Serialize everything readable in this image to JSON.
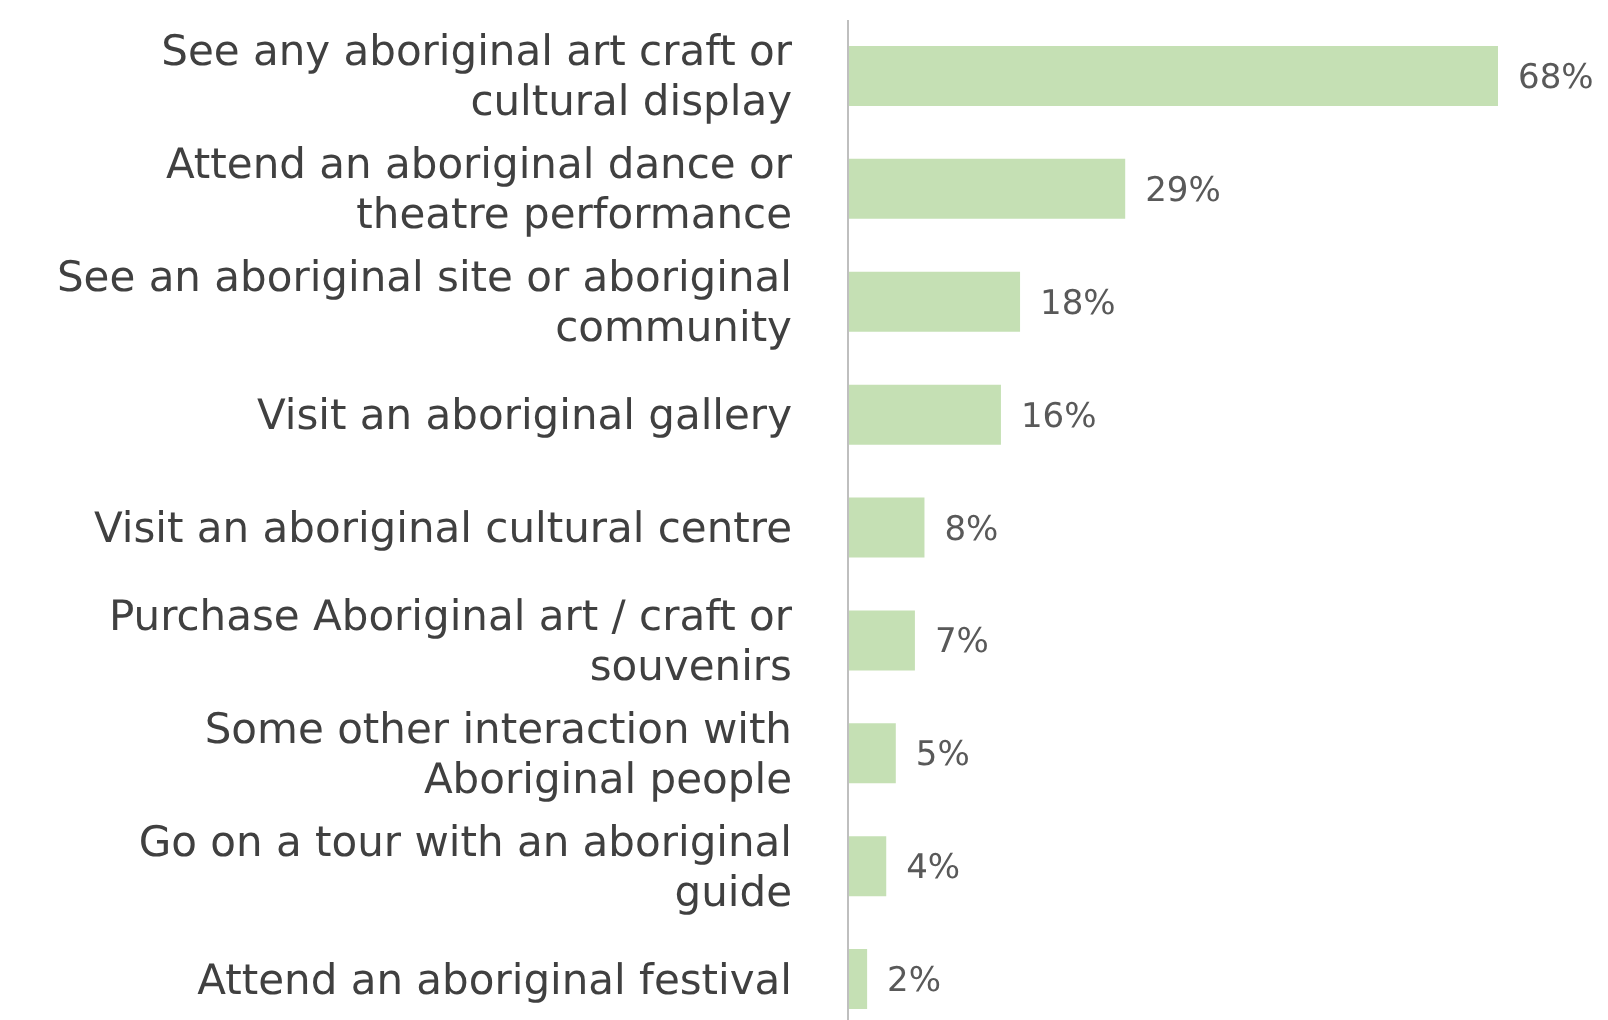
{
  "chart_data": {
    "type": "bar",
    "orientation": "horizontal",
    "categories": [
      "See any aboriginal art craft or cultural display",
      "Attend an aboriginal dance or theatre performance",
      "See an aboriginal site or aboriginal community",
      "Visit an aboriginal gallery",
      "Visit an aboriginal cultural centre",
      "Purchase Aboriginal art / craft or souvenirs",
      "Some other interaction with Aboriginal people",
      "Go on a tour with an aboriginal guide",
      "Attend an aboriginal festival"
    ],
    "values": [
      68,
      29,
      18,
      16,
      8,
      7,
      5,
      4,
      2
    ],
    "value_labels": [
      "68%",
      "29%",
      "18%",
      "16%",
      "8%",
      "7%",
      "5%",
      "4%",
      "2%"
    ],
    "color": "#c5e0b4"
  }
}
